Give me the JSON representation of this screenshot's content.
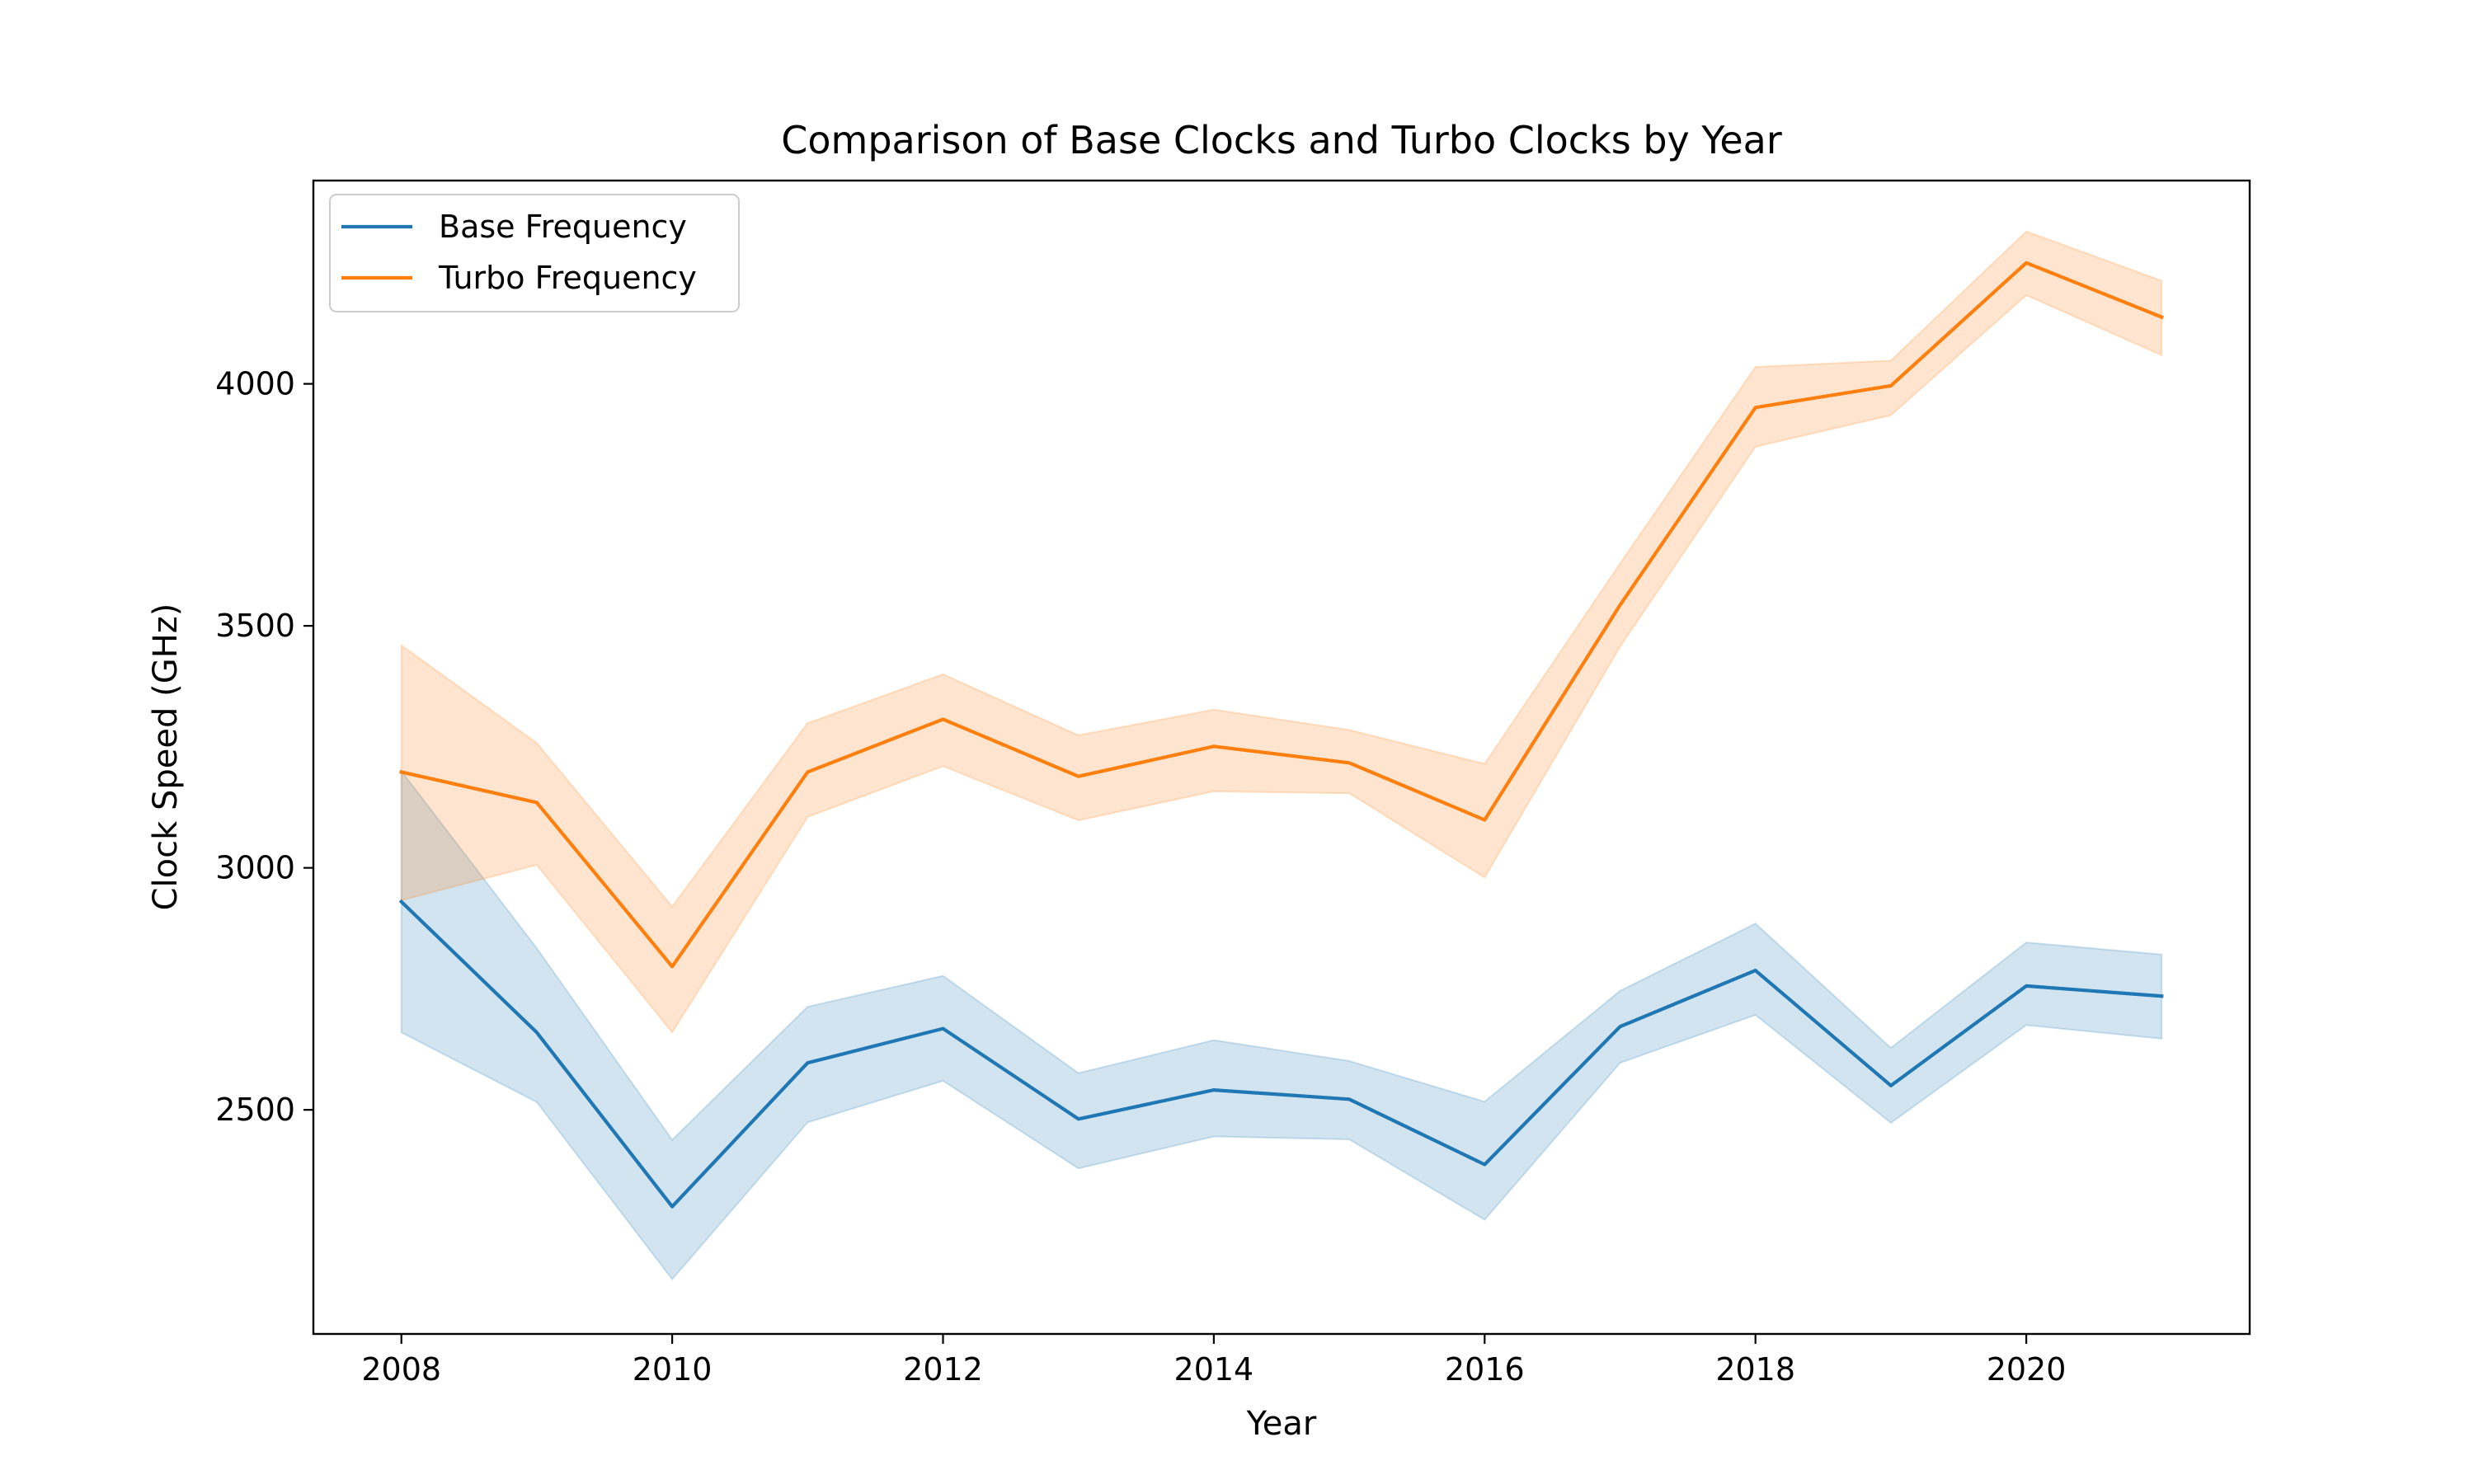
{
  "chart_data": {
    "type": "line",
    "title": "Comparison of Base Clocks and Turbo Clocks by Year",
    "xlabel": "Year",
    "ylabel": "Clock Speed (GHz)",
    "xlim": [
      2007.35,
      2021.65
    ],
    "ylim": [
      2037,
      4420
    ],
    "x_ticks": [
      2008,
      2010,
      2012,
      2014,
      2016,
      2018,
      2020
    ],
    "y_ticks": [
      2500,
      3000,
      3500,
      4000
    ],
    "grid": false,
    "legend_position": "top-left",
    "x": [
      2008,
      2009,
      2010,
      2011,
      2012,
      2013,
      2014,
      2015,
      2016,
      2017,
      2018,
      2019,
      2020,
      2021
    ],
    "series": [
      {
        "name": "Base Frequency",
        "color": "#1f77b4",
        "values": [
          2930,
          2660,
          2300,
          2597,
          2668,
          2481,
          2541,
          2522,
          2387,
          2672,
          2788,
          2550,
          2756,
          2735
        ],
        "band_lower": [
          2660,
          2516,
          2150,
          2474,
          2560,
          2379,
          2445,
          2439,
          2273,
          2597,
          2696,
          2473,
          2675,
          2647
        ],
        "band_upper": [
          3200,
          2834,
          2438,
          2713,
          2777,
          2576,
          2644,
          2601,
          2517,
          2746,
          2885,
          2628,
          2846,
          2821
        ]
      },
      {
        "name": "Turbo Frequency",
        "color": "#ff7f0e",
        "values": [
          3198,
          3135,
          2796,
          3198,
          3307,
          3189,
          3251,
          3217,
          3099,
          3543,
          3951,
          3996,
          4250,
          4138
        ],
        "band_lower": [
          2933,
          3006,
          2660,
          3105,
          3210,
          3098,
          3158,
          3154,
          2980,
          3457,
          3870,
          3935,
          4183,
          4059
        ],
        "band_upper": [
          3460,
          3258,
          2920,
          3299,
          3400,
          3274,
          3327,
          3285,
          3215,
          3629,
          4035,
          4048,
          4315,
          4213
        ]
      }
    ]
  }
}
